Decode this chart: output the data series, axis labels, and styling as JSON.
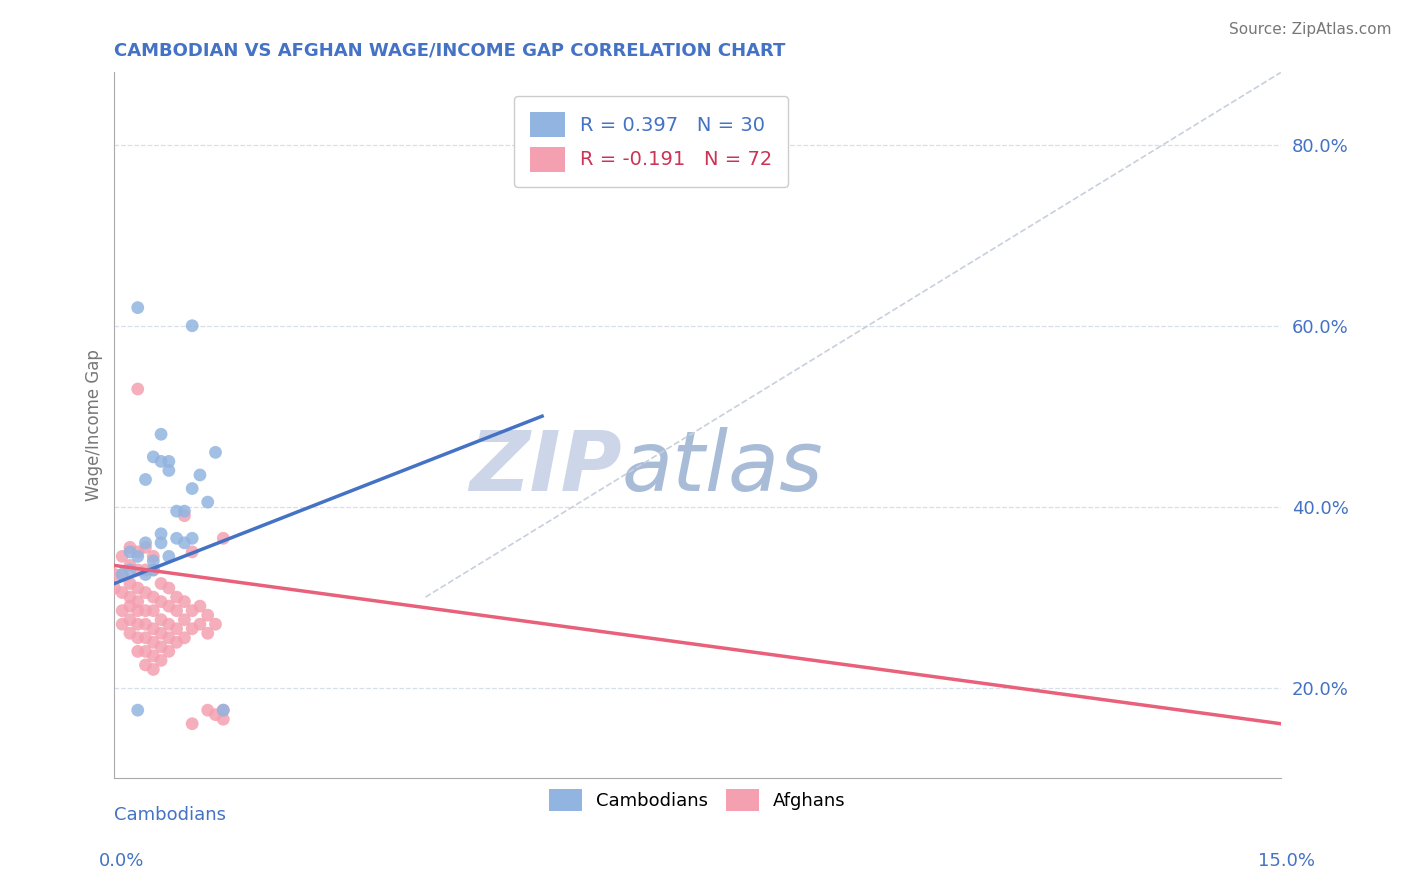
{
  "title": "CAMBODIAN VS AFGHAN WAGE/INCOME GAP CORRELATION CHART",
  "source": "Source: ZipAtlas.com",
  "ylabel": "Wage/Income Gap",
  "yticks": [
    0.2,
    0.4,
    0.6,
    0.8
  ],
  "ytick_labels": [
    "20.0%",
    "40.0%",
    "60.0%",
    "80.0%"
  ],
  "xmin": 0.0,
  "xmax": 0.15,
  "ymin": 0.1,
  "ymax": 0.88,
  "legend_cambodians": "Cambodians",
  "legend_afghans": "Afghans",
  "r_cambodians": 0.397,
  "n_cambodians": 30,
  "r_afghans": -0.191,
  "n_afghans": 72,
  "cambodian_color": "#92b4e0",
  "afghan_color": "#f4a0b0",
  "cambodian_line_color": "#4472c4",
  "afghan_line_color": "#e8607a",
  "ref_line_color": "#c8d0dc",
  "title_color": "#4472c4",
  "axis_label_color": "#4472c4",
  "grid_color": "#d8dfe8",
  "watermark_zip_color": "#cdd6e8",
  "watermark_atlas_color": "#a8bcd8",
  "cam_line_x": [
    0.0,
    0.055
  ],
  "cam_line_y": [
    0.315,
    0.5
  ],
  "afg_line_x": [
    0.0,
    0.15
  ],
  "afg_line_y": [
    0.335,
    0.16
  ],
  "ref_line_x": [
    0.04,
    0.15
  ],
  "ref_line_y": [
    0.3,
    0.88
  ],
  "cambodian_dots": [
    [
      0.001,
      0.325
    ],
    [
      0.002,
      0.33
    ],
    [
      0.002,
      0.35
    ],
    [
      0.003,
      0.345
    ],
    [
      0.003,
      0.62
    ],
    [
      0.004,
      0.325
    ],
    [
      0.004,
      0.36
    ],
    [
      0.004,
      0.43
    ],
    [
      0.005,
      0.33
    ],
    [
      0.005,
      0.34
    ],
    [
      0.005,
      0.455
    ],
    [
      0.006,
      0.36
    ],
    [
      0.006,
      0.37
    ],
    [
      0.006,
      0.45
    ],
    [
      0.006,
      0.48
    ],
    [
      0.007,
      0.345
    ],
    [
      0.007,
      0.44
    ],
    [
      0.007,
      0.45
    ],
    [
      0.008,
      0.365
    ],
    [
      0.008,
      0.395
    ],
    [
      0.009,
      0.36
    ],
    [
      0.009,
      0.395
    ],
    [
      0.01,
      0.365
    ],
    [
      0.01,
      0.42
    ],
    [
      0.01,
      0.6
    ],
    [
      0.003,
      0.175
    ],
    [
      0.011,
      0.435
    ],
    [
      0.012,
      0.405
    ],
    [
      0.013,
      0.46
    ],
    [
      0.014,
      0.175
    ]
  ],
  "afghan_dots": [
    [
      0.0,
      0.31
    ],
    [
      0.0,
      0.325
    ],
    [
      0.001,
      0.27
    ],
    [
      0.001,
      0.285
    ],
    [
      0.001,
      0.305
    ],
    [
      0.001,
      0.325
    ],
    [
      0.001,
      0.345
    ],
    [
      0.002,
      0.26
    ],
    [
      0.002,
      0.275
    ],
    [
      0.002,
      0.29
    ],
    [
      0.002,
      0.3
    ],
    [
      0.002,
      0.315
    ],
    [
      0.002,
      0.335
    ],
    [
      0.002,
      0.355
    ],
    [
      0.003,
      0.24
    ],
    [
      0.003,
      0.255
    ],
    [
      0.003,
      0.27
    ],
    [
      0.003,
      0.285
    ],
    [
      0.003,
      0.295
    ],
    [
      0.003,
      0.31
    ],
    [
      0.003,
      0.33
    ],
    [
      0.003,
      0.35
    ],
    [
      0.003,
      0.53
    ],
    [
      0.004,
      0.225
    ],
    [
      0.004,
      0.24
    ],
    [
      0.004,
      0.255
    ],
    [
      0.004,
      0.27
    ],
    [
      0.004,
      0.285
    ],
    [
      0.004,
      0.305
    ],
    [
      0.004,
      0.33
    ],
    [
      0.004,
      0.355
    ],
    [
      0.005,
      0.22
    ],
    [
      0.005,
      0.235
    ],
    [
      0.005,
      0.25
    ],
    [
      0.005,
      0.265
    ],
    [
      0.005,
      0.285
    ],
    [
      0.005,
      0.3
    ],
    [
      0.005,
      0.33
    ],
    [
      0.005,
      0.345
    ],
    [
      0.006,
      0.23
    ],
    [
      0.006,
      0.245
    ],
    [
      0.006,
      0.26
    ],
    [
      0.006,
      0.275
    ],
    [
      0.006,
      0.295
    ],
    [
      0.006,
      0.315
    ],
    [
      0.007,
      0.24
    ],
    [
      0.007,
      0.255
    ],
    [
      0.007,
      0.27
    ],
    [
      0.007,
      0.29
    ],
    [
      0.007,
      0.31
    ],
    [
      0.008,
      0.25
    ],
    [
      0.008,
      0.265
    ],
    [
      0.008,
      0.285
    ],
    [
      0.008,
      0.3
    ],
    [
      0.009,
      0.255
    ],
    [
      0.009,
      0.275
    ],
    [
      0.009,
      0.295
    ],
    [
      0.009,
      0.39
    ],
    [
      0.01,
      0.265
    ],
    [
      0.01,
      0.285
    ],
    [
      0.011,
      0.27
    ],
    [
      0.011,
      0.29
    ],
    [
      0.012,
      0.175
    ],
    [
      0.012,
      0.26
    ],
    [
      0.012,
      0.28
    ],
    [
      0.013,
      0.17
    ],
    [
      0.013,
      0.27
    ],
    [
      0.014,
      0.165
    ],
    [
      0.014,
      0.175
    ],
    [
      0.014,
      0.365
    ],
    [
      0.01,
      0.16
    ],
    [
      0.01,
      0.35
    ]
  ]
}
